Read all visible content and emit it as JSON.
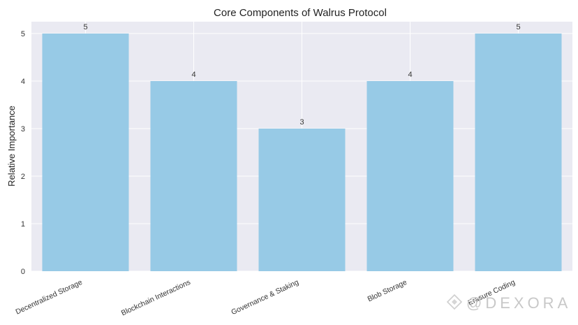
{
  "chart_data": {
    "type": "bar",
    "title": "Core Components of Walrus Protocol",
    "xlabel": "",
    "ylabel": "Relative Importance",
    "categories": [
      "Decentralized Storage",
      "Blockchain Interactions",
      "Governance & Staking",
      "Blob Storage",
      "Erasure Coding"
    ],
    "values": [
      5,
      4,
      3,
      4,
      5
    ],
    "ylim": [
      0,
      5.25
    ],
    "yticks": [
      0,
      1,
      2,
      3,
      4,
      5
    ],
    "grid": true,
    "colors": {
      "bar": "#97cae6",
      "plot_bg": "#eaeaf2",
      "grid": "#ffffff"
    }
  },
  "watermark": "@DEXORA"
}
